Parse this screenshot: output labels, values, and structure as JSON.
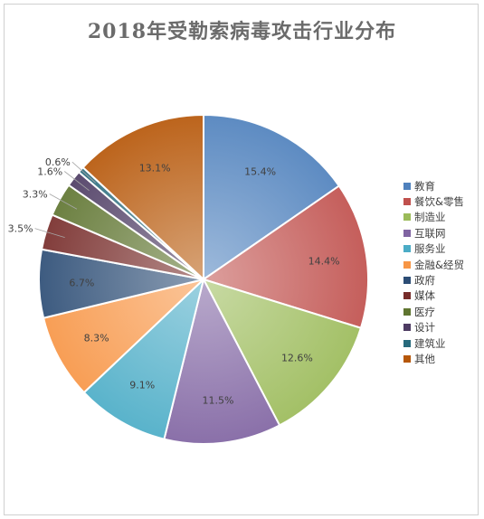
{
  "chart_data": {
    "type": "pie",
    "title": "2018年受勒索病毒攻击行业分布",
    "categories": [
      "教育",
      "餐饮&零售",
      "制造业",
      "互联网",
      "服务业",
      "金融&经贸",
      "政府",
      "媒体",
      "医疗",
      "设计",
      "建筑业",
      "其他"
    ],
    "values": [
      15.4,
      14.4,
      12.6,
      11.5,
      9.1,
      8.3,
      6.7,
      3.5,
      3.3,
      1.6,
      0.6,
      13.1
    ],
    "labels": [
      "15.4%",
      "14.4%",
      "12.6%",
      "11.5%",
      "9.1%",
      "8.3%",
      "6.7%",
      "3.5%",
      "3.3%",
      "1.6%",
      "0.6%",
      "13.1%"
    ],
    "colors": [
      "#4f81bd",
      "#c0504d",
      "#9bbb59",
      "#8064a2",
      "#4bacc6",
      "#f79646",
      "#2c4d75",
      "#772c2a",
      "#5f7530",
      "#4d3b62",
      "#276a7c",
      "#b65708"
    ],
    "legend_position": "right"
  }
}
